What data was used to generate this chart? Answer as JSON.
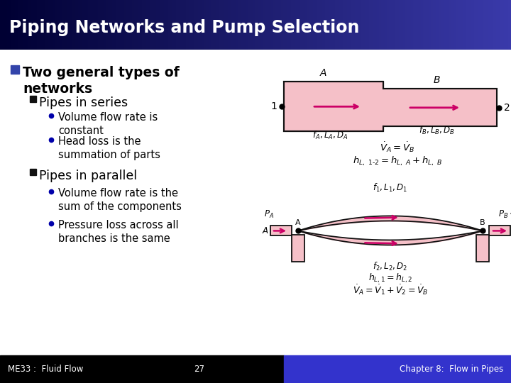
{
  "title": "Piping Networks and Pump Selection",
  "title_bg_top": "#3a3aaa",
  "title_bg_bottom": "#000033",
  "title_text_color": "#ffffff",
  "body_bg_color": "#ffffff",
  "footer_left": "ME33 :  Fluid Flow",
  "footer_center": "27",
  "footer_right": "Chapter 8:  Flow in Pipes",
  "footer_bg_left": "#000000",
  "footer_bg_right": "#3333cc",
  "footer_text_color": "#ffffff",
  "bullet1_color": "#3344aa",
  "bullet2_color": "#111111",
  "bullet3_color": "#0000aa",
  "pipe_fill": "#f5c0c8",
  "pipe_edge": "#111111",
  "arrow_color": "#cc0066",
  "text_color": "#000000"
}
